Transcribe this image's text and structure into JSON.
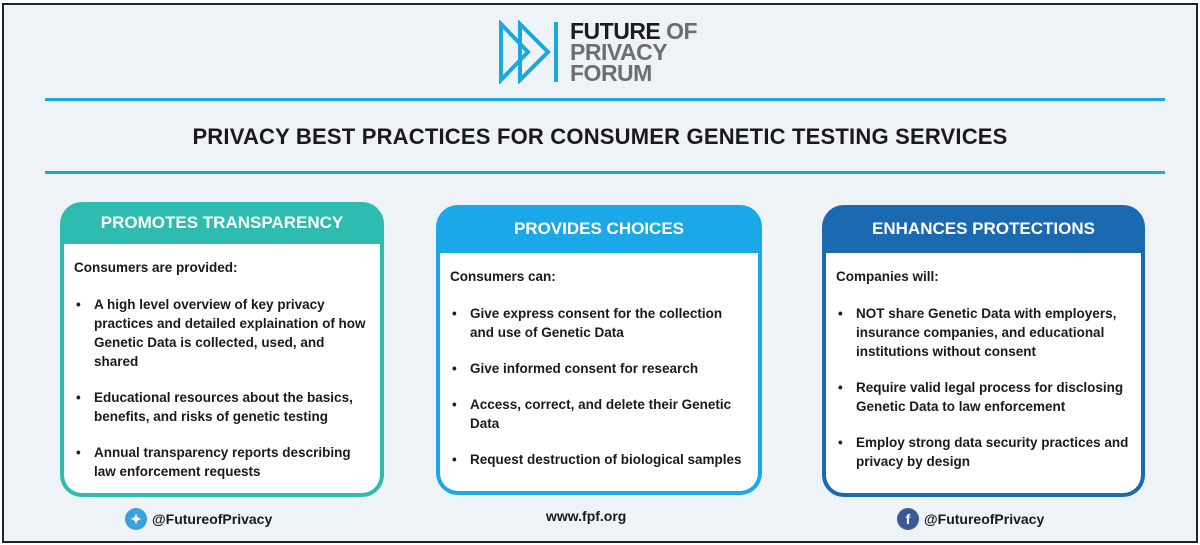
{
  "logo": {
    "line1a": "FUTURE",
    "line1b": "OF",
    "line2": "PRIVACY",
    "line3": "FORUM",
    "icon": "fast-forward-icon"
  },
  "title": "PRIVACY BEST PRACTICES FOR CONSUMER GENETIC TESTING SERVICES",
  "colors": {
    "teal": "#2fbcb0",
    "light_blue": "#1ba8e8",
    "dark_blue": "#1a6ab2",
    "background": "#eef3f7"
  },
  "cards": [
    {
      "heading": "PROMOTES TRANSPARENCY",
      "intro": "Consumers are provided:",
      "items": [
        "A high level overview of key privacy practices and detailed explaination of how Genetic Data is collected, used, and shared",
        "Educational resources about the basics, benefits, and risks of genetic testing",
        "Annual transparency reports describing law enforcement requests"
      ]
    },
    {
      "heading": "PROVIDES CHOICES",
      "intro": "Consumers can:",
      "items": [
        "Give express consent for the collection and use of Genetic Data",
        "Give informed consent for research",
        "Access, correct, and delete their Genetic Data",
        "Request destruction of biological samples"
      ]
    },
    {
      "heading": "ENHANCES PROTECTIONS",
      "intro": "Companies will:",
      "items": [
        "NOT share Genetic Data with employers, insurance companies, and educational institutions without consent",
        "Require valid legal process for disclosing Genetic Data to law enforcement",
        "Employ strong data security practices and privacy by design"
      ]
    }
  ],
  "footer": {
    "twitter": "@FutureofPrivacy",
    "website": "www.fpf.org",
    "facebook": "@FutureofPrivacy"
  }
}
